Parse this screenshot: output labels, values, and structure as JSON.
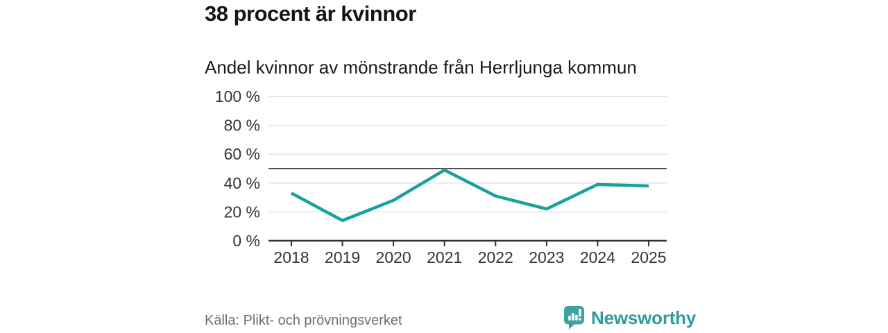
{
  "header": {
    "title": "38 procent är kvinnor",
    "subtitle": "Andel kvinnor av mönstrande från Herrljunga kommun"
  },
  "footer": {
    "source": "Källa: Plikt- och prövningsverket",
    "brand": "Newsworthy"
  },
  "colors": {
    "accent_teal": "#17a29a",
    "grid": "#e1e1e1",
    "reference_line": "#4e4e55",
    "axis": "#303030",
    "tick_text": "#333333",
    "title_text": "#141414",
    "subtitle_text": "#1a1a1a",
    "source_text": "#6f6f6f",
    "brand_text": "#2f9b9b",
    "logo_bubble": "#40a1a3"
  },
  "chart_data": {
    "type": "line",
    "title": "38 procent är kvinnor",
    "subtitle": "Andel kvinnor av mönstrande från Herrljunga kommun",
    "categories": [
      "2018",
      "2019",
      "2020",
      "2021",
      "2022",
      "2023",
      "2024",
      "2025"
    ],
    "series": [
      {
        "name": "Andel kvinnor av mönstrande",
        "color": "#17a29a",
        "values": [
          33,
          14,
          28,
          49,
          31,
          22,
          39,
          38
        ]
      }
    ],
    "unit": "%",
    "ylim": [
      0,
      100
    ],
    "y_ticks": [
      0,
      20,
      40,
      60,
      80,
      100
    ],
    "y_tick_labels": [
      "0 %",
      "20 %",
      "40 %",
      "60 %",
      "80 %",
      "100 %"
    ],
    "reference_line_y": 50,
    "grid": true,
    "legend": "none",
    "xlabel": "",
    "ylabel": ""
  }
}
